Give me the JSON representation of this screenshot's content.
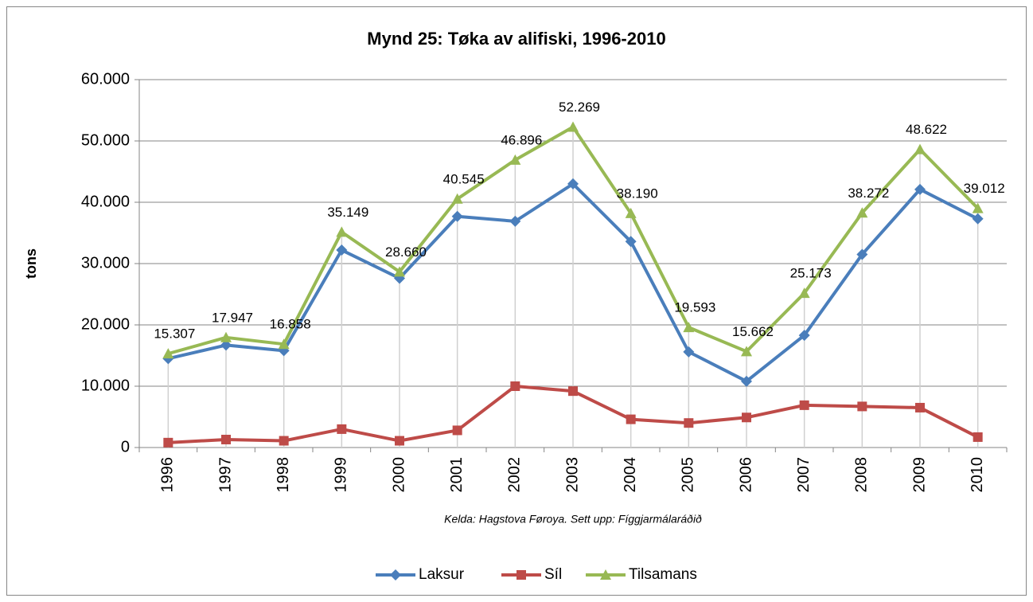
{
  "chart_data": {
    "type": "line",
    "title": "Mynd 25: Tøka av alifiski, 1996-2010",
    "ylabel": "tons",
    "source": "Kelda: Hagstova Føroya. Sett upp: Fíggjarmálaráðið",
    "categories": [
      "1996",
      "1997",
      "1998",
      "1999",
      "2000",
      "2001",
      "2002",
      "2003",
      "2004",
      "2005",
      "2006",
      "2007",
      "2008",
      "2009",
      "2010"
    ],
    "series": [
      {
        "name": "Laksur",
        "color": "#4a7ebb",
        "marker": "diamond",
        "values": [
          14500,
          16700,
          15800,
          32200,
          27600,
          37700,
          36900,
          43000,
          33600,
          15600,
          10800,
          18300,
          31500,
          42100,
          37300
        ]
      },
      {
        "name": "Síl",
        "color": "#be4b48",
        "marker": "square",
        "values": [
          800,
          1300,
          1100,
          3000,
          1100,
          2800,
          10000,
          9200,
          4600,
          4000,
          4900,
          6900,
          6700,
          6500,
          1700
        ]
      },
      {
        "name": "Tilsamans",
        "color": "#98b954",
        "marker": "triangle",
        "values": [
          15307,
          17947,
          16858,
          35149,
          28660,
          40545,
          46896,
          52269,
          38190,
          19593,
          15662,
          25173,
          38272,
          48622,
          39012
        ],
        "value_labels": [
          "15.307",
          "17.947",
          "16.858",
          "35.149",
          "28.660",
          "40.545",
          "46.896",
          "52.269",
          "38.190",
          "19.593",
          "15.662",
          "25.173",
          "38.272",
          "48.622",
          "39.012"
        ]
      }
    ],
    "ylim": [
      0,
      60000
    ],
    "yticks": [
      0,
      {
        "value": 10000,
        "label": "10.000"
      },
      {
        "value": 20000,
        "label": "20.000"
      },
      {
        "value": 30000,
        "label": "30.000"
      },
      {
        "value": 40000,
        "label": "40.000"
      },
      {
        "value": 50000,
        "label": "50.000"
      },
      {
        "value": 60000,
        "label": "60.000"
      }
    ],
    "grid": true,
    "drop_lines": true,
    "legend": "bottom"
  }
}
